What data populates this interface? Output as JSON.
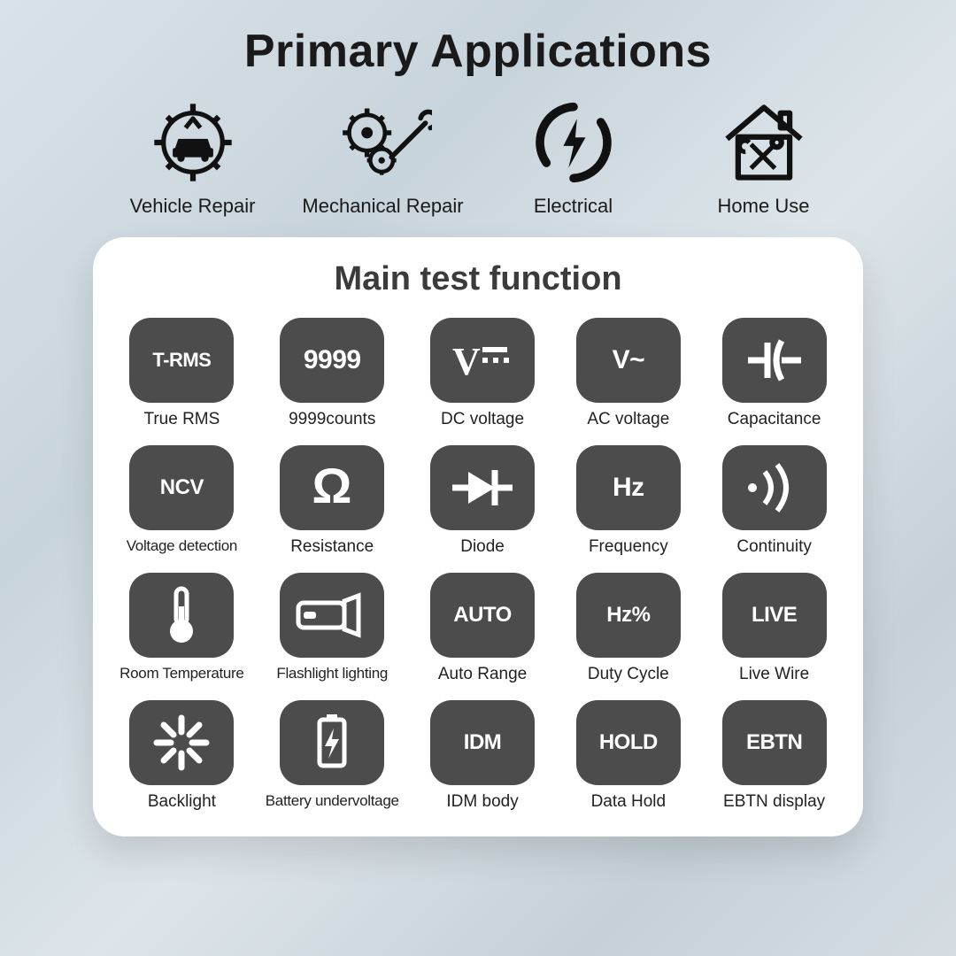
{
  "title": "Primary Applications",
  "applications": [
    {
      "label": "Vehicle Repair",
      "icon": "vehicle-repair-icon"
    },
    {
      "label": "Mechanical Repair",
      "icon": "mechanical-repair-icon"
    },
    {
      "label": "Electrical",
      "icon": "electrical-icon"
    },
    {
      "label": "Home Use",
      "icon": "home-use-icon"
    }
  ],
  "panel": {
    "title": "Main test function",
    "tile_bg": "#4c4c4c",
    "tile_fg": "#ffffff",
    "items": [
      {
        "glyph": "T-RMS",
        "label": "True RMS",
        "kind": "text",
        "size": "xs"
      },
      {
        "glyph": "9999",
        "label": "9999counts",
        "kind": "text"
      },
      {
        "glyph": "V⎓",
        "label": "DC voltage",
        "kind": "dcv"
      },
      {
        "glyph": "V~",
        "label": "AC voltage",
        "kind": "text",
        "size": ""
      },
      {
        "glyph": "⊣⊢",
        "label": "Capacitance",
        "kind": "cap"
      },
      {
        "glyph": "NCV",
        "label": "Voltage detection",
        "kind": "text",
        "size": "sm",
        "tight": true
      },
      {
        "glyph": "Ω",
        "label": "Resistance",
        "kind": "omega"
      },
      {
        "glyph": "▶|",
        "label": "Diode",
        "kind": "diode"
      },
      {
        "glyph": "Hz",
        "label": "Frequency",
        "kind": "text"
      },
      {
        "glyph": "·))",
        "label": "Continuity",
        "kind": "cont"
      },
      {
        "glyph": "🌡",
        "label": "Room Temperature",
        "kind": "thermo",
        "tight": true
      },
      {
        "glyph": "🔦",
        "label": "Flashlight lighting",
        "kind": "flash",
        "tight": true
      },
      {
        "glyph": "AUTO",
        "label": "Auto Range",
        "kind": "text",
        "size": "sm"
      },
      {
        "glyph": "Hz%",
        "label": "Duty Cycle",
        "kind": "text",
        "size": "sm"
      },
      {
        "glyph": "LIVE",
        "label": "Live Wire",
        "kind": "text",
        "size": "sm"
      },
      {
        "glyph": "✳",
        "label": "Backlight",
        "kind": "backlight"
      },
      {
        "glyph": "🔋",
        "label": "Battery undervoltage",
        "kind": "battery",
        "tight": true
      },
      {
        "glyph": "IDM",
        "label": "IDM body",
        "kind": "text",
        "size": "sm"
      },
      {
        "glyph": "HOLD",
        "label": "Data Hold",
        "kind": "text",
        "size": "sm"
      },
      {
        "glyph": "EBTN",
        "label": "EBTN display",
        "kind": "text",
        "size": "sm"
      }
    ]
  }
}
